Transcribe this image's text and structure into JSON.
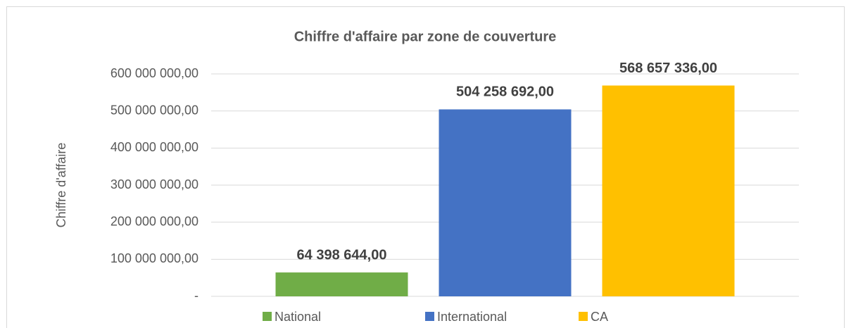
{
  "chart_data": {
    "type": "bar",
    "title": "Chiffre d'affaire par zone de couverture",
    "y_label": "Chiffre d'affaire",
    "categories": [
      null
    ],
    "series": [
      {
        "name": "National",
        "color": "#70ad47",
        "values": [
          64398644
        ],
        "value_labels": [
          "64 398 644,00"
        ]
      },
      {
        "name": "International",
        "color": "#4472c4",
        "values": [
          504258692
        ],
        "value_labels": [
          "504 258 692,00"
        ]
      },
      {
        "name": "CA",
        "color": "#ffc000",
        "values": [
          568657336
        ],
        "value_labels": [
          "568 657 336,00"
        ]
      }
    ],
    "ylim": [
      0,
      600000000
    ],
    "yticks": [
      {
        "value": 0,
        "label": "-"
      },
      {
        "value": 100000000,
        "label": "100 000 000,00"
      },
      {
        "value": 200000000,
        "label": "200 000 000,00"
      },
      {
        "value": 300000000,
        "label": "300 000 000,00"
      },
      {
        "value": 400000000,
        "label": "400 000 000,00"
      },
      {
        "value": 500000000,
        "label": "500 000 000,00"
      },
      {
        "value": 600000000,
        "label": "600 000 000,00"
      }
    ],
    "grid": true,
    "legend": "bottom"
  }
}
